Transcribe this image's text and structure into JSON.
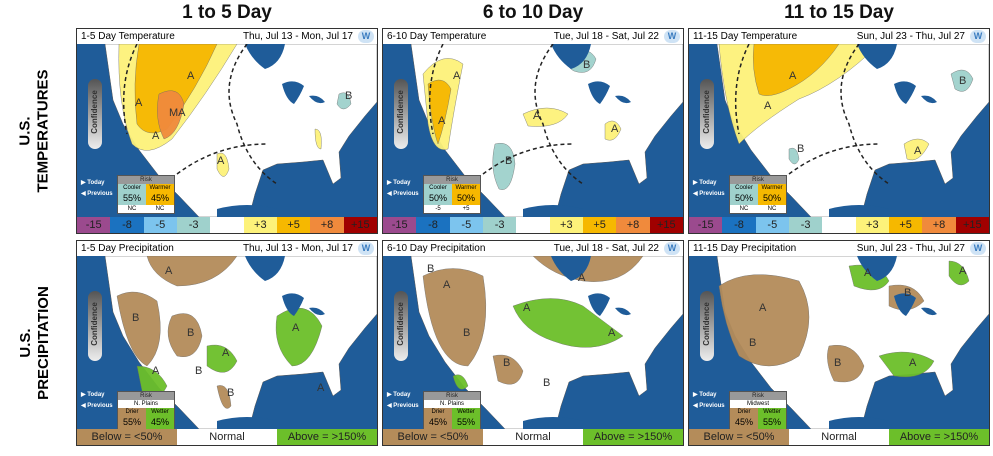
{
  "columns": [
    "1 to 5 Day",
    "6 to 10 Day",
    "11 to 15 Day"
  ],
  "rows": [
    {
      "line1": "U.S.",
      "line2": "TEMPERATURES"
    },
    {
      "line1": "U.S.",
      "line2": "PRECIPITATION"
    }
  ],
  "confidence_label": "Confidence",
  "today_label": "▶ Today",
  "previous_label": "◀ Previous",
  "logo": "W",
  "risk_label": "Risk",
  "temp_legend": [
    {
      "label": "-15",
      "color": "#9b4a8e"
    },
    {
      "label": "-8",
      "color": "#1b72c0"
    },
    {
      "label": "-5",
      "color": "#7cc4ee"
    },
    {
      "label": "-3",
      "color": "#9fd1cc"
    },
    {
      "label": "",
      "color": "#ffffff"
    },
    {
      "label": "+3",
      "color": "#fdf27a"
    },
    {
      "label": "+5",
      "color": "#f6b800"
    },
    {
      "label": "+8",
      "color": "#f08a3c"
    },
    {
      "label": "+15",
      "color": "#a00000"
    }
  ],
  "precip_legend": [
    {
      "label": "Below = <50%",
      "color": "#b48c5a"
    },
    {
      "label": "Normal",
      "color": "#ffffff"
    },
    {
      "label": "Above = >150%",
      "color": "#6cbf2a"
    }
  ],
  "panels": [
    {
      "kind": "temp",
      "title": "1-5 Day Temperature",
      "dates": "Thu, Jul 13 - Mon, Jul 17",
      "labels": [
        "A",
        "MA",
        "A",
        "A",
        "A",
        "B"
      ],
      "risk": {
        "region": "",
        "left": "Cooler",
        "right": "Warmer",
        "left_pct": "55%",
        "right_pct": "45%",
        "left_note": "NC",
        "right_note": "NC"
      }
    },
    {
      "kind": "temp",
      "title": "6-10 Day Temperature",
      "dates": "Tue, Jul 18 - Sat, Jul 22",
      "labels": [
        "A",
        "A",
        "B",
        "B",
        "A",
        "A"
      ],
      "risk": {
        "region": "",
        "left": "Cooler",
        "right": "Warmer",
        "left_pct": "50%",
        "right_pct": "50%",
        "left_note": "-5",
        "right_note": "+5"
      }
    },
    {
      "kind": "temp",
      "title": "11-15 Day Temperature",
      "dates": "Sun, Jul 23 - Thu, Jul 27",
      "labels": [
        "A",
        "A",
        "B",
        "B",
        "A"
      ],
      "risk": {
        "region": "",
        "left": "Cooler",
        "right": "Warmer",
        "left_pct": "50%",
        "right_pct": "50%",
        "left_note": "NC",
        "right_note": "NC"
      }
    },
    {
      "kind": "precip",
      "title": "1-5 Day Precipitation",
      "dates": "Thu, Jul 13 - Mon, Jul 17",
      "labels": [
        "A",
        "B",
        "B",
        "B",
        "A",
        "A",
        "A",
        "B",
        "A"
      ],
      "risk": {
        "region": "N. Plains",
        "left": "Drier",
        "right": "Wetter",
        "left_pct": "55%",
        "right_pct": "45%"
      }
    },
    {
      "kind": "precip",
      "title": "6-10 Day Precipitation",
      "dates": "Tue, Jul 18 - Sat, Jul 22",
      "labels": [
        "A",
        "B",
        "A",
        "A",
        "B",
        "B",
        "A",
        "B"
      ],
      "risk": {
        "region": "N. Plains",
        "left": "Drier",
        "right": "Wetter",
        "left_pct": "45%",
        "right_pct": "55%"
      }
    },
    {
      "kind": "precip",
      "title": "11-15 Day Precipitation",
      "dates": "Sun, Jul 23 - Thu, Jul 27",
      "labels": [
        "A",
        "A",
        "B",
        "B",
        "A",
        "B",
        "A"
      ],
      "risk": {
        "region": "Midwest",
        "left": "Drier",
        "right": "Wetter",
        "left_pct": "45%",
        "right_pct": "55%"
      }
    }
  ]
}
